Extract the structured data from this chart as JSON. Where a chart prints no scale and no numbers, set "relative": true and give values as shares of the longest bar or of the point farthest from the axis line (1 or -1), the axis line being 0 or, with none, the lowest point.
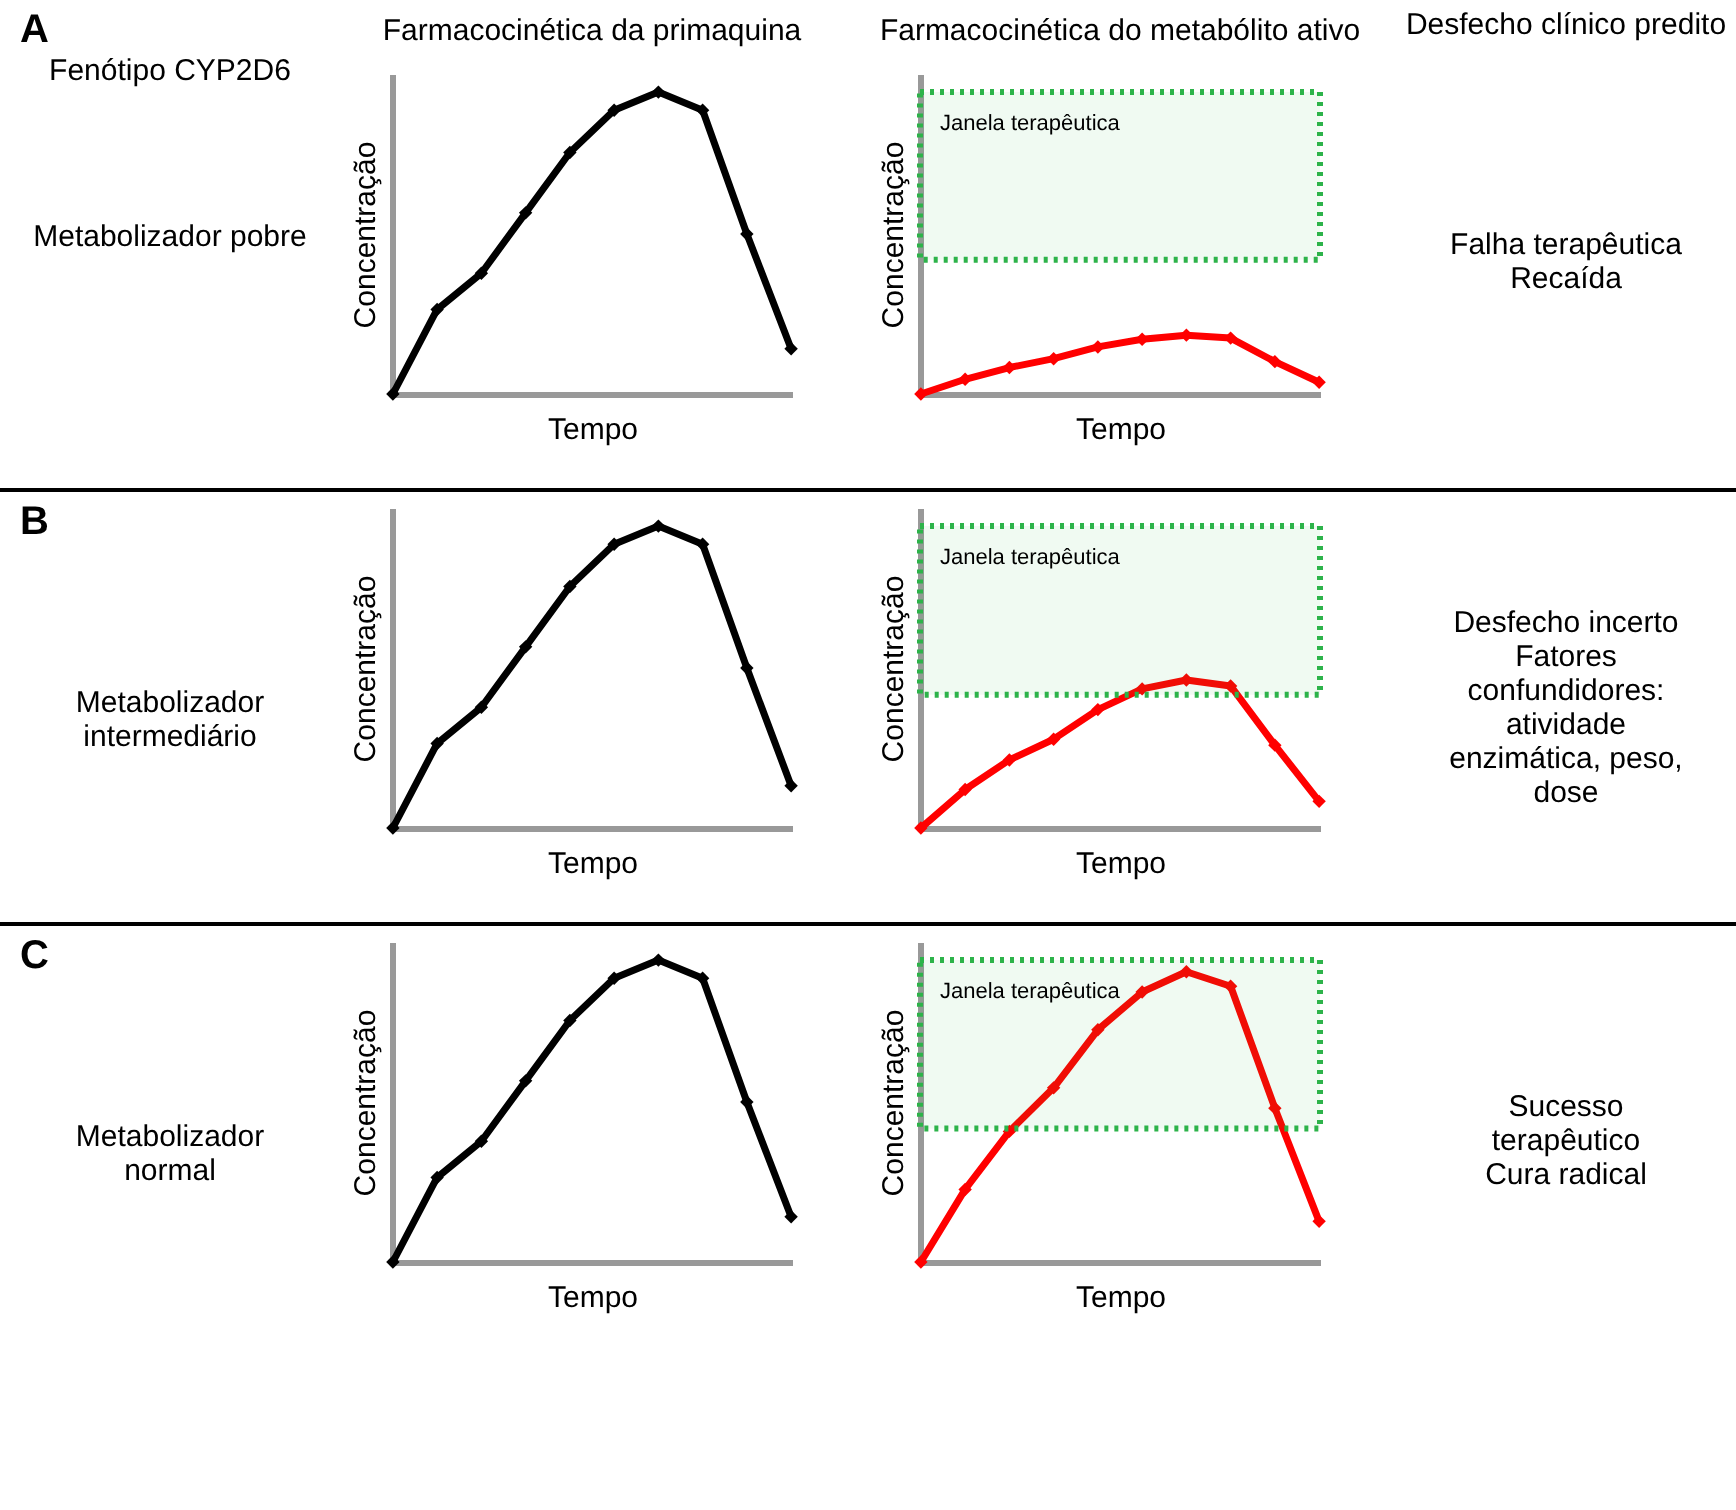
{
  "chart_data": [
    {
      "type": "line",
      "relative": true,
      "title": "Farmacocinética da primaquina",
      "xlabel": "Tempo",
      "ylabel": "Concentração",
      "marker": "diamond",
      "annotations": [
        "A",
        "Fenótipo CYP2D6",
        "Metabolizador pobre"
      ],
      "categories": [
        null,
        null,
        null,
        null,
        null,
        null,
        null,
        null,
        null,
        null
      ],
      "series": [
        {
          "color": "#000000",
          "values": [
            0,
            0.28,
            0.4,
            0.6,
            0.8,
            0.94,
            1,
            0.94,
            0.53,
            0.15
          ]
        }
      ]
    },
    {
      "type": "line",
      "relative": true,
      "title": "Farmacocinética do metabólito ativo",
      "xlabel": "Tempo",
      "ylabel": "Concentração",
      "marker": "diamond",
      "annotations": [
        "Desfecho clínico predito",
        "Falha terapêutica\nRecaída"
      ],
      "categories": [
        null,
        null,
        null,
        null,
        null,
        null,
        null,
        null,
        null,
        null
      ],
      "bands": [
        {
          "axis": "y",
          "from": 2.28,
          "to": 5.13,
          "label": "Janela terapêutica",
          "color": "#2db34a"
        }
      ],
      "series": [
        {
          "color": "#ff0000",
          "values": [
            0,
            0.25,
            0.45,
            0.6,
            0.8,
            0.93,
            1,
            0.95,
            0.55,
            0.2
          ]
        }
      ]
    },
    {
      "type": "line",
      "relative": true,
      "xlabel": "Tempo",
      "ylabel": "Concentração",
      "marker": "diamond",
      "annotations": [
        "B",
        "Metabolizador\nintermediário"
      ],
      "categories": [
        null,
        null,
        null,
        null,
        null,
        null,
        null,
        null,
        null,
        null
      ],
      "series": [
        {
          "color": "#000000",
          "values": [
            0,
            0.28,
            0.4,
            0.6,
            0.8,
            0.94,
            1,
            0.94,
            0.53,
            0.14
          ]
        }
      ]
    },
    {
      "type": "line",
      "relative": true,
      "xlabel": "Tempo",
      "ylabel": "Concentração",
      "marker": "diamond",
      "annotations": [
        "Desfecho incerto\nFatores\nconfundidores:\natividade\nenzimática, peso,\ndose"
      ],
      "categories": [
        null,
        null,
        null,
        null,
        null,
        null,
        null,
        null,
        null,
        null
      ],
      "bands": [
        {
          "axis": "y",
          "from": 0.9,
          "to": 2.04,
          "label": "Janela terapêutica",
          "color": "#2db34a"
        }
      ],
      "series": [
        {
          "color": "#ff0000",
          "values": [
            0,
            0.26,
            0.46,
            0.6,
            0.8,
            0.94,
            1,
            0.96,
            0.56,
            0.18
          ]
        }
      ]
    },
    {
      "type": "line",
      "relative": true,
      "xlabel": "Tempo",
      "ylabel": "Concentração",
      "marker": "diamond",
      "annotations": [
        "C",
        "Metabolizador\nnormal"
      ],
      "categories": [
        null,
        null,
        null,
        null,
        null,
        null,
        null,
        null,
        null,
        null
      ],
      "series": [
        {
          "color": "#000000",
          "values": [
            0,
            0.28,
            0.4,
            0.6,
            0.8,
            0.94,
            1,
            0.94,
            0.53,
            0.15
          ]
        }
      ]
    },
    {
      "type": "line",
      "relative": true,
      "xlabel": "Tempo",
      "ylabel": "Concentração",
      "marker": "diamond",
      "annotations": [
        "Sucesso\nterapêutico\nCura radical"
      ],
      "categories": [
        null,
        null,
        null,
        null,
        null,
        null,
        null,
        null,
        null,
        null
      ],
      "bands": [
        {
          "axis": "y",
          "from": 0.46,
          "to": 1.04,
          "label": "Janela terapêutica",
          "color": "#2db34a"
        }
      ],
      "series": [
        {
          "color": "#ff0000",
          "values": [
            0,
            0.25,
            0.45,
            0.6,
            0.8,
            0.93,
            1,
            0.95,
            0.53,
            0.14
          ]
        }
      ]
    }
  ]
}
